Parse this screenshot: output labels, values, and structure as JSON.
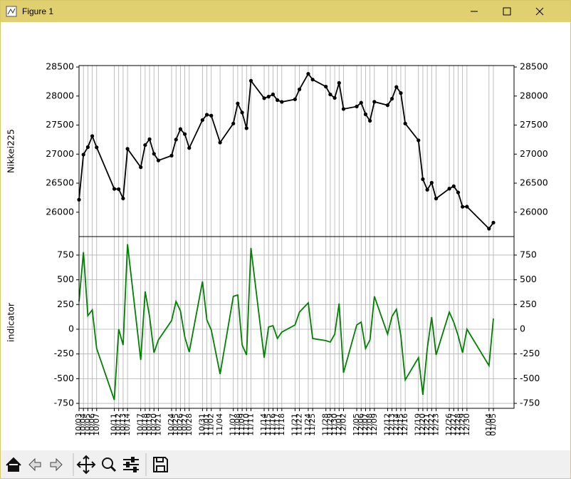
{
  "window": {
    "title": "Figure 1"
  },
  "chart_data": [
    {
      "type": "line",
      "ylabel": "Nikkei225",
      "markers": true,
      "xgrid": true,
      "ygrid": false,
      "ylim": [
        25580,
        28525
      ],
      "yticks": [
        26000,
        26500,
        27000,
        27500,
        28000,
        28500
      ],
      "series": [
        {
          "color": "#000000",
          "values": [
            26215,
            26992,
            27120,
            27311,
            27116,
            26401,
            26397,
            26237,
            27091,
            26775,
            27156,
            27257,
            27006,
            26891,
            26974,
            27250,
            27431,
            27345,
            27105,
            27587,
            27678,
            27663,
            27199,
            27527,
            27872,
            27716,
            27446,
            28263,
            27963,
            27990,
            28028,
            27930,
            27899,
            27944,
            28115,
            28383,
            28283,
            28162,
            28027,
            27968,
            28226,
            27777,
            27820,
            27885,
            27686,
            27574,
            27901,
            27842,
            27954,
            28156,
            28051,
            27527,
            27237,
            26568,
            26387,
            26507,
            26235,
            26405,
            26447,
            26340,
            26093,
            26095,
            25716,
            25820
          ]
        }
      ]
    },
    {
      "type": "line",
      "ylabel": "indicator",
      "markers": false,
      "xgrid": true,
      "ygrid": true,
      "x": [
        "10/03",
        "10/04",
        "10/05",
        "10/06",
        "10/07",
        "10/11",
        "10/12",
        "10/13",
        "10/14",
        "10/17",
        "10/18",
        "10/19",
        "10/20",
        "10/21",
        "10/24",
        "10/25",
        "10/26",
        "10/27",
        "10/28",
        "10/31",
        "11/01",
        "11/02",
        "11/04",
        "11/07",
        "11/08",
        "11/09",
        "11/10",
        "11/11",
        "11/14",
        "11/15",
        "11/16",
        "11/17",
        "11/18",
        "11/21",
        "11/22",
        "11/24",
        "11/25",
        "11/28",
        "11/29",
        "11/30",
        "12/01",
        "12/02",
        "12/05",
        "12/06",
        "12/07",
        "12/08",
        "12/09",
        "12/12",
        "12/13",
        "12/14",
        "12/15",
        "12/16",
        "12/19",
        "12/20",
        "12/21",
        "12/22",
        "12/23",
        "12/26",
        "12/27",
        "12/28",
        "12/29",
        "12/30",
        "01/04",
        "01/05"
      ],
      "ylim": [
        -800,
        937
      ],
      "yticks": [
        -750,
        -500,
        -250,
        0,
        250,
        500,
        750
      ],
      "series": [
        {
          "color": "#008000",
          "values": [
            280,
            780,
            137,
            195,
            -195,
            -715,
            0,
            -160,
            860,
            -310,
            382,
            130,
            -238,
            -108,
            87,
            281,
            187,
            -80,
            -231,
            483,
            94,
            -7,
            -454,
            332,
            346,
            -159,
            -260,
            822,
            -288,
            22,
            36,
            -94,
            -29,
            43,
            173,
            267,
            -94,
            -115,
            -130,
            -50,
            260,
            -440,
            43,
            72,
            -195,
            -108,
            332,
            -50,
            130,
            202,
            -65,
            -512,
            -288,
            -663,
            -195,
            123,
            -260,
            173,
            72,
            -65,
            -238,
            0,
            -368,
            108
          ]
        }
      ]
    }
  ]
}
